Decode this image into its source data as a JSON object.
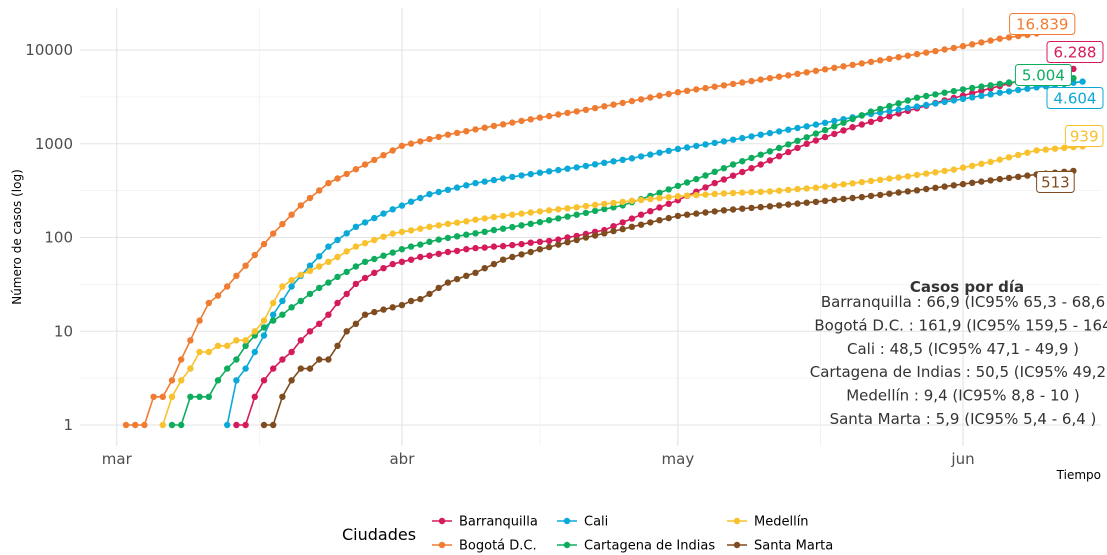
{
  "chart_data": {
    "type": "line",
    "scale_y": "log10",
    "ylabel": "Número de casos (log)",
    "xlabel": "Tiempo",
    "xlim": [
      "2020-02-26",
      "2020-06-16"
    ],
    "ylim": [
      1,
      20000
    ],
    "x_ticks": [
      {
        "date": "2020-03-01",
        "label": "mar"
      },
      {
        "date": "2020-04-01",
        "label": "abr"
      },
      {
        "date": "2020-05-01",
        "label": "may"
      },
      {
        "date": "2020-06-01",
        "label": "jun"
      }
    ],
    "y_ticks": [
      {
        "value": 1,
        "label": "1"
      },
      {
        "value": 10,
        "label": "10"
      },
      {
        "value": 100,
        "label": "100"
      },
      {
        "value": 1000,
        "label": "1000"
      },
      {
        "value": 10000,
        "label": "10000"
      }
    ],
    "grid": true,
    "legend": {
      "title": "Ciudades",
      "position": "bottom"
    },
    "series": [
      {
        "name": "Barranquilla",
        "color": "#d51b5b",
        "end_label": "6.288",
        "anchors": [
          [
            "2020-03-14",
            1
          ],
          [
            "2020-03-17",
            3
          ],
          [
            "2020-03-19",
            5
          ],
          [
            "2020-03-21",
            8
          ],
          [
            "2020-03-23",
            12
          ],
          [
            "2020-03-25",
            20
          ],
          [
            "2020-03-27",
            32
          ],
          [
            "2020-03-29",
            42
          ],
          [
            "2020-03-31",
            52
          ],
          [
            "2020-04-03",
            62
          ],
          [
            "2020-04-08",
            75
          ],
          [
            "2020-04-13",
            83
          ],
          [
            "2020-04-18",
            95
          ],
          [
            "2020-04-23",
            120
          ],
          [
            "2020-04-27",
            175
          ],
          [
            "2020-05-01",
            250
          ],
          [
            "2020-05-05",
            380
          ],
          [
            "2020-05-10",
            600
          ],
          [
            "2020-05-15",
            1000
          ],
          [
            "2020-05-20",
            1500
          ],
          [
            "2020-05-25",
            2100
          ],
          [
            "2020-05-30",
            2900
          ],
          [
            "2020-06-04",
            3900
          ],
          [
            "2020-06-09",
            5200
          ],
          [
            "2020-06-13",
            6288
          ]
        ]
      },
      {
        "name": "Bogotá D.C.",
        "color": "#f07c32",
        "end_label": "16.839",
        "anchors": [
          [
            "2020-03-02",
            1
          ],
          [
            "2020-03-06",
            2
          ],
          [
            "2020-03-07",
            3
          ],
          [
            "2020-03-09",
            8
          ],
          [
            "2020-03-11",
            20
          ],
          [
            "2020-03-13",
            30
          ],
          [
            "2020-03-15",
            50
          ],
          [
            "2020-03-18",
            110
          ],
          [
            "2020-03-21",
            220
          ],
          [
            "2020-03-24",
            380
          ],
          [
            "2020-03-28",
            600
          ],
          [
            "2020-04-01",
            950
          ],
          [
            "2020-04-06",
            1250
          ],
          [
            "2020-04-11",
            1550
          ],
          [
            "2020-04-16",
            1900
          ],
          [
            "2020-04-21",
            2300
          ],
          [
            "2020-04-26",
            2850
          ],
          [
            "2020-05-01",
            3550
          ],
          [
            "2020-05-06",
            4200
          ],
          [
            "2020-05-11",
            5000
          ],
          [
            "2020-05-16",
            6000
          ],
          [
            "2020-05-21",
            7200
          ],
          [
            "2020-05-26",
            8700
          ],
          [
            "2020-05-31",
            10500
          ],
          [
            "2020-06-05",
            13200
          ],
          [
            "2020-06-08",
            14500
          ],
          [
            "2020-06-12",
            16839
          ]
        ]
      },
      {
        "name": "Cali",
        "color": "#0ba9d8",
        "end_label": "4.604",
        "anchors": [
          [
            "2020-03-13",
            1
          ],
          [
            "2020-03-14",
            3
          ],
          [
            "2020-03-16",
            6
          ],
          [
            "2020-03-18",
            15
          ],
          [
            "2020-03-20",
            30
          ],
          [
            "2020-03-22",
            50
          ],
          [
            "2020-03-24",
            80
          ],
          [
            "2020-03-27",
            130
          ],
          [
            "2020-03-31",
            200
          ],
          [
            "2020-04-04",
            290
          ],
          [
            "2020-04-09",
            380
          ],
          [
            "2020-04-14",
            460
          ],
          [
            "2020-04-20",
            560
          ],
          [
            "2020-04-26",
            700
          ],
          [
            "2020-05-01",
            880
          ],
          [
            "2020-05-06",
            1060
          ],
          [
            "2020-05-11",
            1300
          ],
          [
            "2020-05-16",
            1600
          ],
          [
            "2020-05-21",
            2000
          ],
          [
            "2020-05-26",
            2400
          ],
          [
            "2020-05-31",
            2900
          ],
          [
            "2020-06-05",
            3500
          ],
          [
            "2020-06-09",
            4000
          ],
          [
            "2020-06-14",
            4604
          ]
        ]
      },
      {
        "name": "Cartagena de Indias",
        "color": "#0ead5e",
        "end_label": "5.004",
        "anchors": [
          [
            "2020-03-07",
            1
          ],
          [
            "2020-03-12",
            3
          ],
          [
            "2020-03-14",
            5
          ],
          [
            "2020-03-16",
            9
          ],
          [
            "2020-03-19",
            15
          ],
          [
            "2020-03-22",
            25
          ],
          [
            "2020-03-25",
            38
          ],
          [
            "2020-03-28",
            55
          ],
          [
            "2020-04-01",
            75
          ],
          [
            "2020-04-05",
            95
          ],
          [
            "2020-04-10",
            115
          ],
          [
            "2020-04-15",
            140
          ],
          [
            "2020-04-20",
            175
          ],
          [
            "2020-04-25",
            220
          ],
          [
            "2020-04-29",
            300
          ],
          [
            "2020-05-03",
            420
          ],
          [
            "2020-05-07",
            600
          ],
          [
            "2020-05-12",
            900
          ],
          [
            "2020-05-17",
            1400
          ],
          [
            "2020-05-22",
            2200
          ],
          [
            "2020-05-27",
            3100
          ],
          [
            "2020-06-01",
            3800
          ],
          [
            "2020-06-06",
            4500
          ],
          [
            "2020-06-13",
            5004
          ]
        ]
      },
      {
        "name": "Medellín",
        "color": "#f8c12d",
        "end_label": "939",
        "anchors": [
          [
            "2020-03-06",
            1
          ],
          [
            "2020-03-08",
            3
          ],
          [
            "2020-03-10",
            6
          ],
          [
            "2020-03-12",
            7
          ],
          [
            "2020-03-15",
            8
          ],
          [
            "2020-03-17",
            13
          ],
          [
            "2020-03-19",
            30
          ],
          [
            "2020-03-21",
            40
          ],
          [
            "2020-03-24",
            55
          ],
          [
            "2020-03-27",
            80
          ],
          [
            "2020-03-31",
            110
          ],
          [
            "2020-04-05",
            135
          ],
          [
            "2020-04-10",
            160
          ],
          [
            "2020-04-15",
            185
          ],
          [
            "2020-04-20",
            210
          ],
          [
            "2020-04-25",
            240
          ],
          [
            "2020-05-01",
            275
          ],
          [
            "2020-05-06",
            295
          ],
          [
            "2020-05-11",
            310
          ],
          [
            "2020-05-16",
            340
          ],
          [
            "2020-05-21",
            390
          ],
          [
            "2020-05-26",
            450
          ],
          [
            "2020-05-31",
            530
          ],
          [
            "2020-06-04",
            640
          ],
          [
            "2020-06-09",
            850
          ],
          [
            "2020-06-14",
            939
          ]
        ]
      },
      {
        "name": "Santa Marta",
        "color": "#7e4c1f",
        "end_label": "513",
        "anchors": [
          [
            "2020-03-17",
            1
          ],
          [
            "2020-03-19",
            2
          ],
          [
            "2020-03-21",
            4
          ],
          [
            "2020-03-24",
            5
          ],
          [
            "2020-03-26",
            10
          ],
          [
            "2020-03-28",
            15
          ],
          [
            "2020-03-31",
            18
          ],
          [
            "2020-04-03",
            22
          ],
          [
            "2020-04-06",
            33
          ],
          [
            "2020-04-09",
            42
          ],
          [
            "2020-04-12",
            58
          ],
          [
            "2020-04-16",
            75
          ],
          [
            "2020-04-21",
            100
          ],
          [
            "2020-04-26",
            130
          ],
          [
            "2020-05-01",
            170
          ],
          [
            "2020-05-06",
            195
          ],
          [
            "2020-05-11",
            215
          ],
          [
            "2020-05-16",
            240
          ],
          [
            "2020-05-21",
            270
          ],
          [
            "2020-05-26",
            310
          ],
          [
            "2020-05-31",
            360
          ],
          [
            "2020-06-05",
            420
          ],
          [
            "2020-06-09",
            470
          ],
          [
            "2020-06-13",
            513
          ]
        ]
      }
    ],
    "annotation": {
      "title": "Casos por día",
      "lines": [
        "Barranquilla : 66,9 (IC95% 65,3 - 68,6",
        "Bogotá D.C. : 161,9 (IC95% 159,5 - 164",
        "Cali : 48,5 (IC95% 47,1 - 49,9 )",
        "Cartagena de Indias : 50,5 (IC95% 49,2 -",
        "Medellín : 9,4 (IC95% 8,8 - 10 )",
        "Santa Marta : 5,9 (IC95% 5,4 - 6,4 )"
      ]
    }
  }
}
